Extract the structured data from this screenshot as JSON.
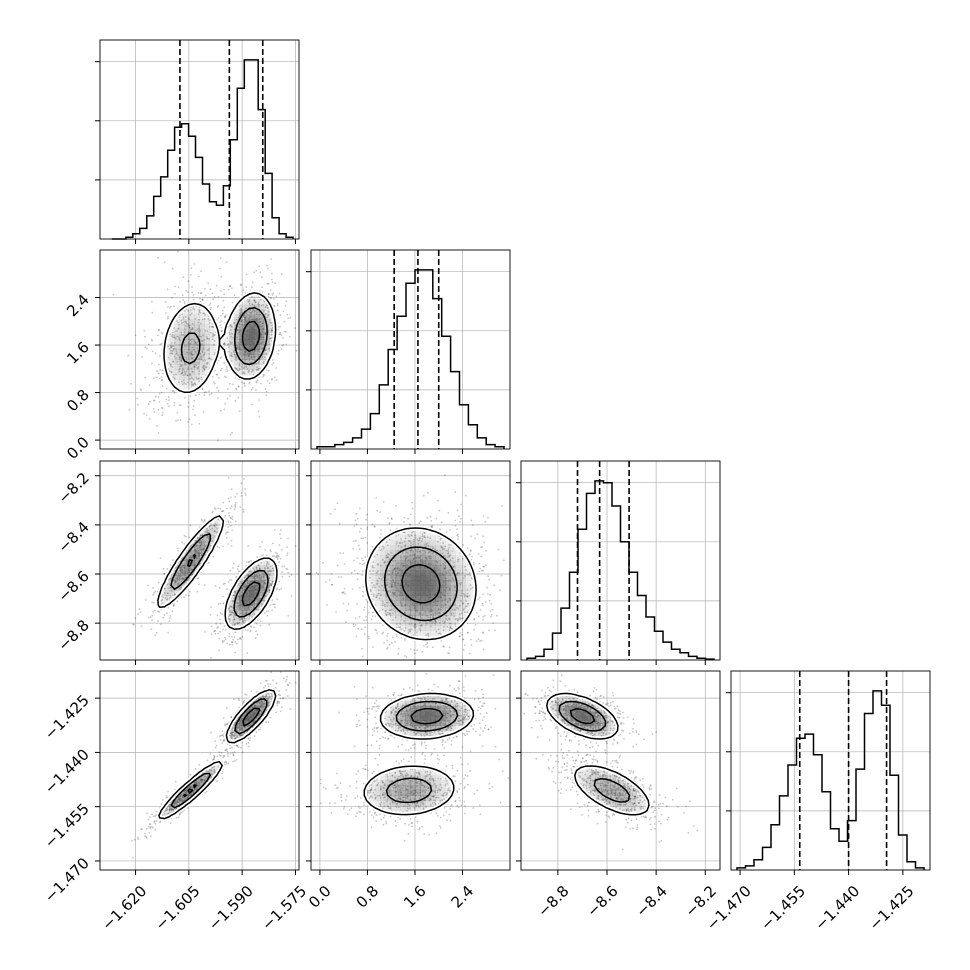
{
  "chart_data": {
    "type": "corner",
    "title": "",
    "parameters": [
      {
        "range": [
          -1.63,
          -1.574
        ],
        "ticks": [
          -1.62,
          -1.605,
          -1.59,
          -1.575
        ],
        "tick_labels": [
          "−1.620",
          "−1.605",
          "−1.590",
          "−1.575"
        ],
        "quantiles": [
          -1.6075,
          -1.5936,
          -1.5842
        ],
        "histogram": [
          0,
          0,
          0.01,
          0.03,
          0.06,
          0.13,
          0.24,
          0.35,
          0.5,
          0.63,
          0.65,
          0.58,
          0.46,
          0.31,
          0.21,
          0.19,
          0.3,
          0.56,
          0.85,
          1.01,
          1.01,
          0.73,
          0.37,
          0.12,
          0.03,
          0.01
        ]
      },
      {
        "range": [
          -0.15,
          3.2
        ],
        "ticks": [
          0.0,
          0.8,
          1.6,
          2.4
        ],
        "tick_labels": [
          "0.0",
          "0.8",
          "1.6",
          "2.4"
        ],
        "quantiles": [
          1.25,
          1.65,
          2.0
        ],
        "histogram": [
          0.01,
          0.01,
          0.02,
          0.03,
          0.05,
          0.09,
          0.16,
          0.29,
          0.45,
          0.6,
          0.75,
          0.81,
          0.81,
          0.68,
          0.51,
          0.35,
          0.2,
          0.11,
          0.05,
          0.02,
          0.01
        ]
      },
      {
        "range": [
          -8.95,
          -8.14
        ],
        "ticks": [
          -8.8,
          -8.6,
          -8.4,
          -8.2
        ],
        "tick_labels": [
          "−8.8",
          "−8.6",
          "−8.4",
          "−8.2"
        ],
        "quantiles": [
          -8.72,
          -8.63,
          -8.51
        ],
        "histogram": [
          0.01,
          0.02,
          0.06,
          0.15,
          0.29,
          0.49,
          0.73,
          0.93,
          1.0,
          0.99,
          0.86,
          0.66,
          0.49,
          0.36,
          0.24,
          0.16,
          0.1,
          0.06,
          0.04,
          0.02,
          0.01,
          0.005
        ]
      },
      {
        "range": [
          -1.4725,
          -1.4175
        ],
        "ticks": [
          -1.47,
          -1.455,
          -1.44,
          -1.425
        ],
        "tick_labels": [
          "−1.470",
          "−1.455",
          "−1.440",
          "−1.425"
        ],
        "quantiles": [
          -1.4535,
          -1.44,
          -1.4295
        ],
        "histogram": [
          0.01,
          0.02,
          0.05,
          0.11,
          0.22,
          0.36,
          0.51,
          0.64,
          0.66,
          0.56,
          0.38,
          0.2,
          0.14,
          0.24,
          0.49,
          0.76,
          0.87,
          0.8,
          0.46,
          0.17,
          0.04,
          0.01
        ]
      }
    ],
    "density_2d": [
      {
        "x_param": 0,
        "y_param": 1,
        "modes": [
          {
            "center": [
              -1.6045,
              1.55
            ],
            "sigma": [
              0.0045,
              0.45
            ],
            "rho": 0.15,
            "weight": 0.45
          },
          {
            "center": [
              -1.5875,
              1.75
            ],
            "sigma": [
              0.0033,
              0.35
            ],
            "rho": 0.15,
            "weight": 0.55
          }
        ]
      },
      {
        "x_param": 0,
        "y_param": 2,
        "modes": [
          {
            "center": [
              -1.6045,
              -8.55
            ],
            "sigma": [
              0.0047,
              0.095
            ],
            "rho": 0.9,
            "weight": 0.45
          },
          {
            "center": [
              -1.5875,
              -8.68
            ],
            "sigma": [
              0.0035,
              0.07
            ],
            "rho": 0.6,
            "weight": 0.55
          }
        ]
      },
      {
        "x_param": 1,
        "y_param": 2,
        "modes": [
          {
            "center": [
              1.7,
              -8.64
            ],
            "sigma": [
              0.45,
              0.11
            ],
            "rho": -0.1,
            "weight": 1.0
          }
        ]
      },
      {
        "x_param": 0,
        "y_param": 3,
        "modes": [
          {
            "center": [
              -1.6045,
              -1.4505
            ],
            "sigma": [
              0.0045,
              0.004
            ],
            "rho": 0.93,
            "weight": 0.45
          },
          {
            "center": [
              -1.5875,
              -1.43
            ],
            "sigma": [
              0.0033,
              0.0035
            ],
            "rho": 0.8,
            "weight": 0.55
          }
        ]
      },
      {
        "x_param": 1,
        "y_param": 3,
        "modes": [
          {
            "center": [
              1.5,
              -1.4505
            ],
            "sigma": [
              0.42,
              0.0037
            ],
            "rho": 0.1,
            "weight": 0.45
          },
          {
            "center": [
              1.8,
              -1.43
            ],
            "sigma": [
              0.38,
              0.003
            ],
            "rho": 0.1,
            "weight": 0.55
          }
        ]
      },
      {
        "x_param": 2,
        "y_param": 3,
        "modes": [
          {
            "center": [
              -8.58,
              -1.4505
            ],
            "sigma": [
              0.085,
              0.0038
            ],
            "rho": -0.6,
            "weight": 0.45
          },
          {
            "center": [
              -8.7,
              -1.43
            ],
            "sigma": [
              0.07,
              0.003
            ],
            "rho": -0.5,
            "weight": 0.55
          }
        ]
      }
    ],
    "contour_levels": [
      0.12,
      0.4,
      0.78
    ],
    "grid": true,
    "colors": {
      "line": "#000000",
      "grid": "#b0b0b0",
      "scatter": "#000000",
      "density_fill": "#606060"
    }
  }
}
